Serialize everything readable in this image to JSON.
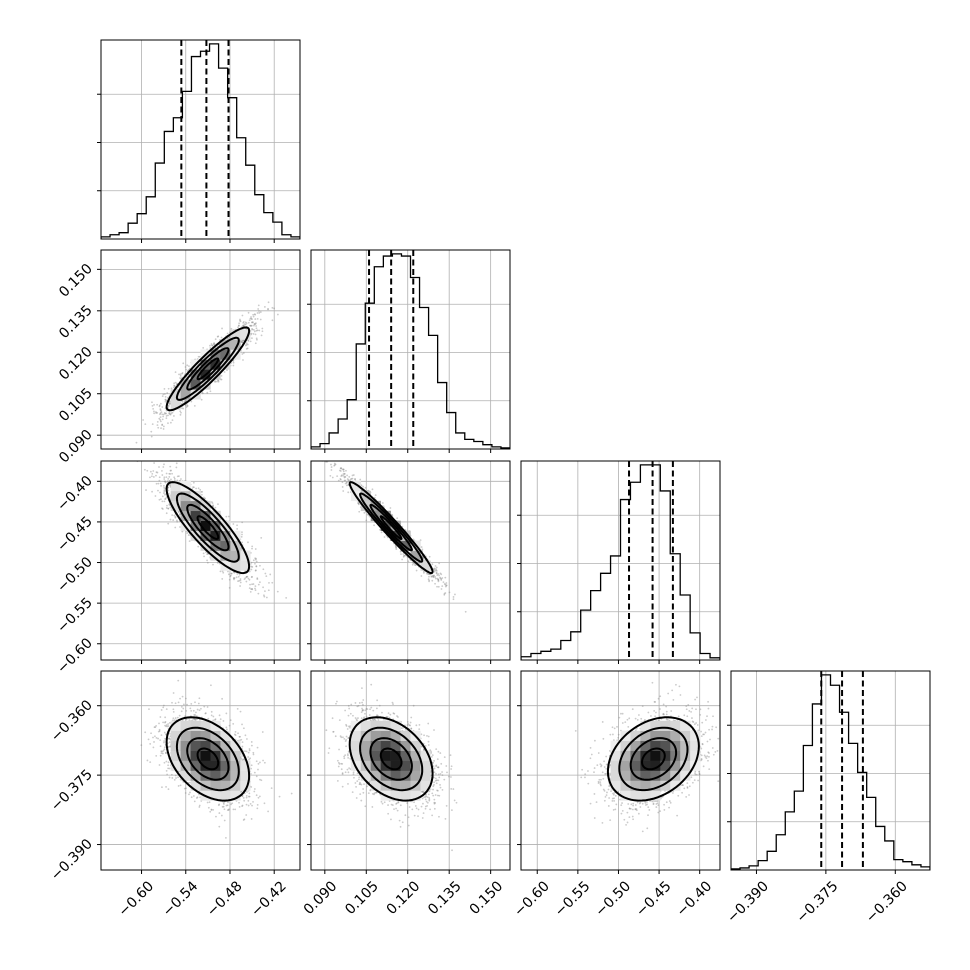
{
  "chart_data": {
    "type": "corner",
    "colors": {
      "line": "#000000",
      "grid": "#b0b0b0",
      "points": "#8c8c8c"
    },
    "grid": true,
    "parameters": [
      {
        "mean": -0.51,
        "sd": 0.028,
        "range": [
          -0.655,
          -0.385
        ],
        "ticks": [
          -0.6,
          -0.54,
          -0.48,
          -0.42
        ],
        "tick_labels": [
          "−0.60",
          "−0.54",
          "−0.48",
          "−0.42"
        ],
        "quantiles": [
          -0.546,
          -0.512,
          -0.482
        ]
      },
      {
        "mean": 0.114,
        "sd": 0.0075,
        "range": [
          0.085,
          0.157
        ],
        "ticks": [
          0.09,
          0.105,
          0.12,
          0.135,
          0.15
        ],
        "tick_labels": [
          "0.090",
          "0.105",
          "0.120",
          "0.135",
          "0.150"
        ],
        "quantiles": [
          0.106,
          0.114,
          0.122
        ]
      },
      {
        "mean": -0.457,
        "sd": 0.028,
        "range": [
          -0.62,
          -0.375
        ],
        "ticks": [
          -0.6,
          -0.55,
          -0.5,
          -0.45,
          -0.4
        ],
        "tick_labels": [
          "−0.60",
          "−0.55",
          "−0.50",
          "−0.45",
          "−0.40"
        ],
        "quantiles": [
          -0.487,
          -0.458,
          -0.433
        ]
      },
      {
        "mean": -0.3715,
        "sd": 0.0045,
        "range": [
          -0.3955,
          -0.3525
        ],
        "ticks": [
          -0.39,
          -0.375,
          -0.36
        ],
        "tick_labels": [
          "−0.390",
          "−0.375",
          "−0.360"
        ],
        "quantiles": [
          -0.376,
          -0.3715,
          -0.367
        ]
      }
    ],
    "correlations": [
      [
        1,
        0.92,
        -0.85,
        -0.4
      ],
      [
        0.92,
        1,
        -0.97,
        -0.35
      ],
      [
        -0.85,
        -0.97,
        1,
        0.3
      ],
      [
        -0.4,
        -0.35,
        0.3,
        1
      ]
    ],
    "contour_levels_sigma": [
      0.5,
      1.0,
      1.5,
      2.0
    ],
    "histograms": [
      {
        "counts": [
          20,
          40,
          60,
          150,
          240,
          400,
          720,
          1020,
          1150,
          1400,
          1730,
          1780,
          1850,
          1620,
          1340,
          960,
          700,
          420,
          250,
          160,
          40,
          20
        ]
      },
      {
        "counts": [
          20,
          50,
          150,
          280,
          460,
          980,
          1360,
          1700,
          1800,
          1820,
          1800,
          1600,
          1320,
          1060,
          620,
          340,
          150,
          90,
          70,
          40,
          20,
          10
        ]
      },
      {
        "counts": [
          30,
          60,
          80,
          100,
          180,
          260,
          460,
          640,
          800,
          960,
          1480,
          1640,
          1800,
          1800,
          1560,
          980,
          600,
          250,
          60,
          20
        ]
      },
      {
        "counts": [
          10,
          20,
          40,
          90,
          180,
          340,
          560,
          760,
          1200,
          1600,
          1880,
          1780,
          1520,
          1220,
          940,
          700,
          420,
          280,
          100,
          80,
          50,
          30
        ]
      }
    ]
  }
}
